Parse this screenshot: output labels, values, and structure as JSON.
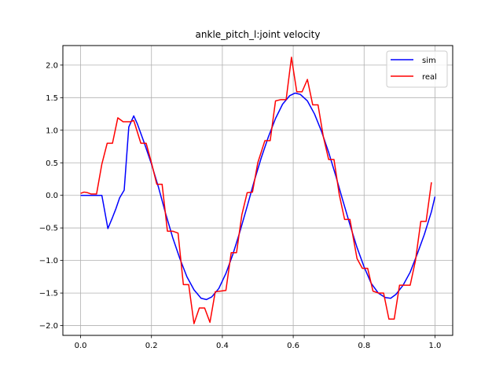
{
  "chart_data": {
    "type": "line",
    "title": "ankle_pitch_l:joint velocity",
    "xlabel": "",
    "ylabel": "",
    "xlim": [
      -0.05,
      1.05
    ],
    "ylim": [
      -2.15,
      2.3
    ],
    "xticks": [
      0.0,
      0.2,
      0.4,
      0.6,
      0.8,
      1.0
    ],
    "xtick_labels": [
      "0.0",
      "0.2",
      "0.4",
      "0.6",
      "0.8",
      "1.0"
    ],
    "yticks": [
      2.0,
      1.5,
      1.0,
      0.5,
      0.0,
      -0.5,
      -1.0,
      -1.5,
      -2.0
    ],
    "ytick_labels": [
      "2.0",
      "1.5",
      "1.0",
      "0.5",
      "0.0",
      "−0.5",
      "−1.0",
      "−1.5",
      "−2.0"
    ],
    "grid": true,
    "legend_position": "top-right",
    "series": [
      {
        "name": "sim",
        "color": "#0000ff",
        "points": [
          [
            0.0,
            0.0
          ],
          [
            0.06,
            0.0
          ],
          [
            0.077,
            -0.51
          ],
          [
            0.09,
            -0.34
          ],
          [
            0.1,
            -0.2
          ],
          [
            0.11,
            -0.04
          ],
          [
            0.123,
            0.08
          ],
          [
            0.136,
            1.05
          ],
          [
            0.15,
            1.22
          ],
          [
            0.16,
            1.1
          ],
          [
            0.18,
            0.8
          ],
          [
            0.2,
            0.48
          ],
          [
            0.22,
            0.12
          ],
          [
            0.24,
            -0.28
          ],
          [
            0.26,
            -0.65
          ],
          [
            0.28,
            -0.97
          ],
          [
            0.3,
            -1.25
          ],
          [
            0.32,
            -1.45
          ],
          [
            0.34,
            -1.58
          ],
          [
            0.355,
            -1.6
          ],
          [
            0.37,
            -1.56
          ],
          [
            0.39,
            -1.43
          ],
          [
            0.41,
            -1.2
          ],
          [
            0.43,
            -0.9
          ],
          [
            0.45,
            -0.55
          ],
          [
            0.47,
            -0.17
          ],
          [
            0.49,
            0.22
          ],
          [
            0.51,
            0.58
          ],
          [
            0.53,
            0.9
          ],
          [
            0.55,
            1.18
          ],
          [
            0.57,
            1.4
          ],
          [
            0.59,
            1.53
          ],
          [
            0.605,
            1.57
          ],
          [
            0.62,
            1.55
          ],
          [
            0.64,
            1.45
          ],
          [
            0.66,
            1.25
          ],
          [
            0.68,
            0.98
          ],
          [
            0.7,
            0.66
          ],
          [
            0.72,
            0.3
          ],
          [
            0.74,
            -0.08
          ],
          [
            0.76,
            -0.45
          ],
          [
            0.78,
            -0.8
          ],
          [
            0.8,
            -1.1
          ],
          [
            0.82,
            -1.35
          ],
          [
            0.84,
            -1.5
          ],
          [
            0.86,
            -1.57
          ],
          [
            0.875,
            -1.58
          ],
          [
            0.89,
            -1.52
          ],
          [
            0.91,
            -1.38
          ],
          [
            0.93,
            -1.18
          ],
          [
            0.95,
            -0.9
          ],
          [
            0.97,
            -0.6
          ],
          [
            0.99,
            -0.25
          ],
          [
            1.0,
            -0.02
          ]
        ]
      },
      {
        "name": "real",
        "color": "#ff0000",
        "points": [
          [
            0.0,
            0.03
          ],
          [
            0.01,
            0.05
          ],
          [
            0.02,
            0.04
          ],
          [
            0.03,
            0.02
          ],
          [
            0.045,
            0.02
          ],
          [
            0.06,
            0.48
          ],
          [
            0.075,
            0.8
          ],
          [
            0.09,
            0.8
          ],
          [
            0.105,
            1.19
          ],
          [
            0.12,
            1.13
          ],
          [
            0.14,
            1.13
          ],
          [
            0.15,
            1.15
          ],
          [
            0.17,
            0.8
          ],
          [
            0.185,
            0.8
          ],
          [
            0.2,
            0.5
          ],
          [
            0.215,
            0.17
          ],
          [
            0.23,
            0.17
          ],
          [
            0.245,
            -0.55
          ],
          [
            0.26,
            -0.55
          ],
          [
            0.275,
            -0.58
          ],
          [
            0.29,
            -1.37
          ],
          [
            0.305,
            -1.37
          ],
          [
            0.32,
            -1.97
          ],
          [
            0.335,
            -1.73
          ],
          [
            0.35,
            -1.73
          ],
          [
            0.365,
            -1.95
          ],
          [
            0.38,
            -1.48
          ],
          [
            0.395,
            -1.47
          ],
          [
            0.41,
            -1.46
          ],
          [
            0.425,
            -0.88
          ],
          [
            0.44,
            -0.88
          ],
          [
            0.455,
            -0.3
          ],
          [
            0.47,
            0.04
          ],
          [
            0.485,
            0.05
          ],
          [
            0.5,
            0.5
          ],
          [
            0.52,
            0.84
          ],
          [
            0.535,
            0.84
          ],
          [
            0.55,
            1.45
          ],
          [
            0.565,
            1.47
          ],
          [
            0.58,
            1.47
          ],
          [
            0.595,
            2.12
          ],
          [
            0.61,
            1.59
          ],
          [
            0.625,
            1.59
          ],
          [
            0.64,
            1.78
          ],
          [
            0.655,
            1.39
          ],
          [
            0.67,
            1.39
          ],
          [
            0.685,
            0.9
          ],
          [
            0.7,
            0.55
          ],
          [
            0.715,
            0.55
          ],
          [
            0.73,
            0.01
          ],
          [
            0.745,
            -0.37
          ],
          [
            0.76,
            -0.37
          ],
          [
            0.78,
            -0.97
          ],
          [
            0.795,
            -1.12
          ],
          [
            0.81,
            -1.12
          ],
          [
            0.825,
            -1.47
          ],
          [
            0.84,
            -1.5
          ],
          [
            0.855,
            -1.5
          ],
          [
            0.87,
            -1.9
          ],
          [
            0.885,
            -1.9
          ],
          [
            0.9,
            -1.38
          ],
          [
            0.915,
            -1.38
          ],
          [
            0.93,
            -1.38
          ],
          [
            0.945,
            -1.0
          ],
          [
            0.96,
            -0.4
          ],
          [
            0.975,
            -0.4
          ],
          [
            0.99,
            0.2
          ]
        ]
      }
    ]
  }
}
